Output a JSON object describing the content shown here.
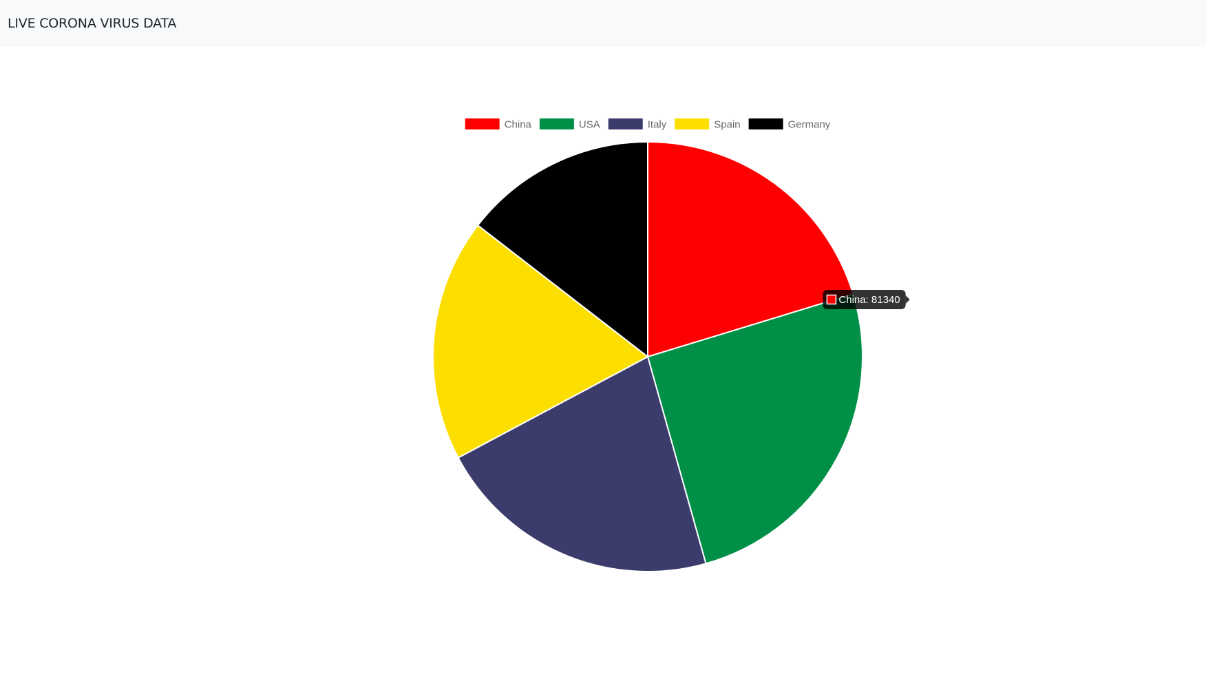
{
  "navbar": {
    "brand": "LIVE CORONA VIRUS DATA"
  },
  "chart_data": {
    "type": "pie",
    "categories": [
      "China",
      "USA",
      "Italy",
      "Spain",
      "Germany"
    ],
    "values": [
      81340,
      101657,
      86498,
      73235,
      58247
    ],
    "colors": [
      "#ff0000",
      "#008f47",
      "#3c3c6c",
      "#fcdf00",
      "#000000"
    ],
    "legend": "top",
    "tooltip": {
      "text": "China: 81340",
      "color": "#ff0000"
    }
  }
}
